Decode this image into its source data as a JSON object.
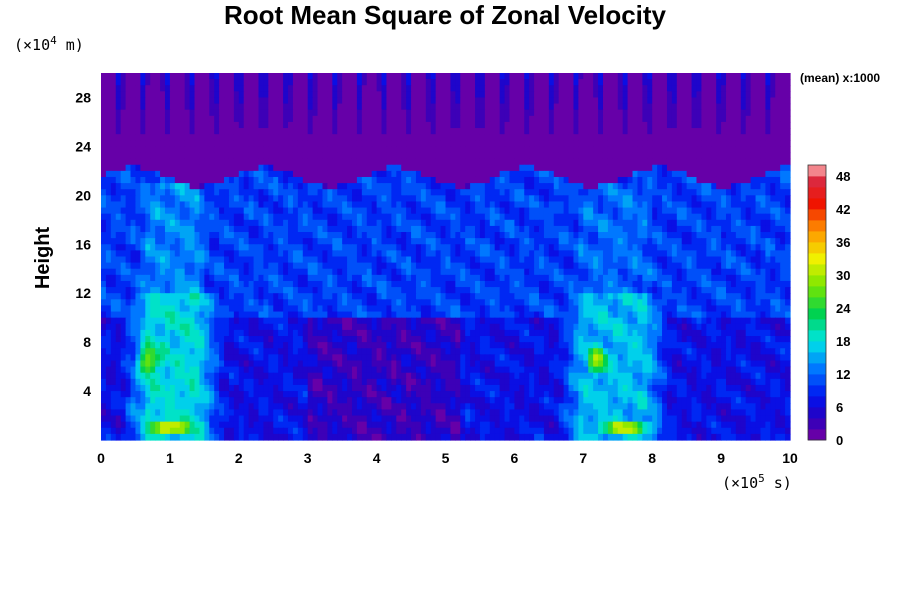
{
  "chart_data": {
    "type": "heatmap",
    "title": "Root Mean Square of Zonal Velocity",
    "ylabel": "Height",
    "y_unit_prefix": "(×10",
    "y_unit_exp": "4",
    "y_unit_suffix": " m)",
    "x_unit_prefix": "(×10",
    "x_unit_exp": "5",
    "x_unit_suffix": " s)",
    "scale_note": "(mean) x:1000",
    "xlim": [
      0,
      10
    ],
    "ylim": [
      0,
      30
    ],
    "x_ticks": [
      "0",
      "1",
      "2",
      "3",
      "4",
      "5",
      "6",
      "7",
      "8",
      "9",
      "10"
    ],
    "y_ticks": [
      "4",
      "8",
      "12",
      "16",
      "20",
      "24",
      "28"
    ],
    "colorbar": {
      "range": [
        0,
        50
      ],
      "levels": [
        0,
        2,
        4,
        6,
        8,
        10,
        12,
        14,
        16,
        18,
        20,
        22,
        24,
        26,
        28,
        30,
        32,
        34,
        36,
        38,
        40,
        42,
        44,
        46,
        48,
        50
      ],
      "tick_labels": [
        "0",
        "6",
        "12",
        "18",
        "24",
        "30",
        "36",
        "42",
        "48"
      ]
    },
    "features": [
      {
        "x": 0.7,
        "y": 6.5,
        "sx": 0.22,
        "sy": 2.0,
        "value": 30
      },
      {
        "x": 7.2,
        "y": 6.5,
        "sx": 0.25,
        "sy": 2.0,
        "value": 28
      },
      {
        "x": 1.0,
        "y": 1.0,
        "sx": 0.45,
        "sy": 0.8,
        "value": 36
      },
      {
        "x": 7.6,
        "y": 1.0,
        "sx": 0.55,
        "sy": 0.8,
        "value": 32
      },
      {
        "x": 0.35,
        "y": 19.5,
        "sx": 0.1,
        "sy": 0.9,
        "value": 14
      },
      {
        "x": 6.65,
        "y": 19.0,
        "sx": 0.1,
        "sy": 1.0,
        "value": 14
      }
    ],
    "bands": [
      {
        "x_from": 0.3,
        "x_to": 1.8,
        "value": 18
      },
      {
        "x_from": 6.6,
        "x_to": 8.3,
        "value": 16
      }
    ],
    "background": {
      "upper_cap_height": 21.5,
      "upper_value": 0,
      "middle_value": 10,
      "lower_value": 7,
      "low_region_x": [
        3.0,
        5.2
      ],
      "low_region_value": 4
    }
  }
}
